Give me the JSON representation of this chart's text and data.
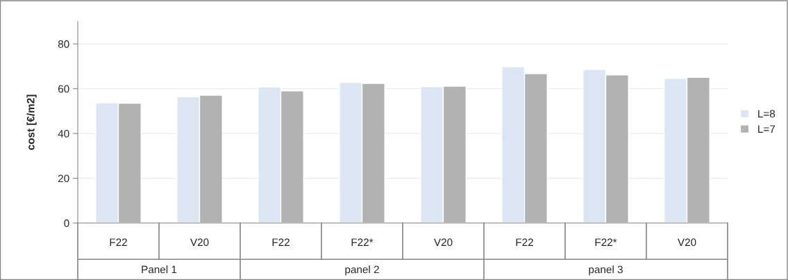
{
  "chart_data": {
    "type": "bar",
    "ylabel": "cost [€/m2]",
    "categories": [
      "F22",
      "V20",
      "F22",
      "F22*",
      "V20",
      "F22",
      "F22*",
      "V20"
    ],
    "series": [
      {
        "name": "L=8",
        "color": "#dce6f2",
        "values": [
          53.7,
          56.4,
          60.7,
          62.8,
          60.9,
          69.8,
          68.6,
          64.6
        ]
      },
      {
        "name": "L=7",
        "color": "#b2b2b2",
        "values": [
          53.5,
          57.1,
          59.0,
          62.4,
          61.1,
          66.7,
          66.2,
          65.1
        ]
      }
    ],
    "annotations": [
      "Panel 1",
      "panel 2",
      "panel 3"
    ],
    "ylim": [
      0,
      90
    ],
    "yticks": [
      0,
      20,
      40,
      60,
      80
    ],
    "grid": "y",
    "legend": "right"
  }
}
